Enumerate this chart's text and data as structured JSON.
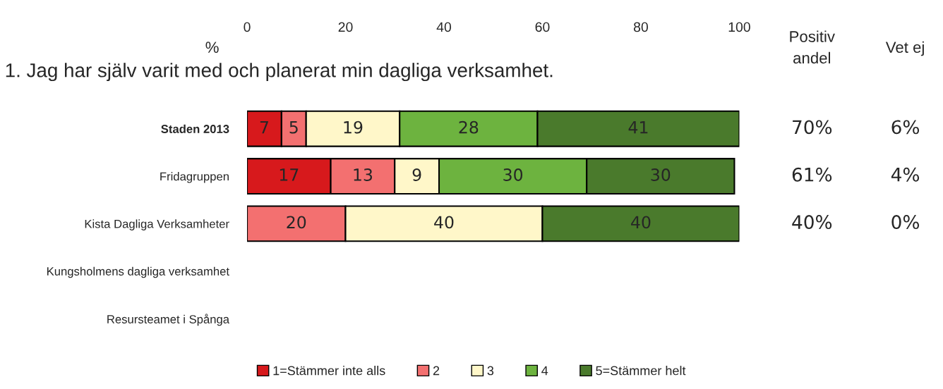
{
  "chart_data": {
    "type": "bar",
    "orientation": "horizontal",
    "stacked": true,
    "title": "1. Jag har själv varit med och planerat min dagliga verksamhet.",
    "xlabel": "%",
    "categories": [
      "Staden 2013",
      "Fridagruppen",
      "Kista Dagliga Verksamheter",
      "Kungsholmens dagliga verksamhet",
      "Resursteamet i Spånga"
    ],
    "series": [
      {
        "name": "1=Stämmer inte alls",
        "color": "#d7191c",
        "values": [
          7,
          17,
          null,
          null,
          null
        ]
      },
      {
        "name": "2",
        "color": "#f37070",
        "values": [
          5,
          13,
          20,
          null,
          null
        ]
      },
      {
        "name": "3",
        "color": "#fff7c9",
        "values": [
          19,
          9,
          40,
          null,
          null
        ]
      },
      {
        "name": "4",
        "color": "#6db33f",
        "values": [
          28,
          30,
          null,
          null,
          null
        ]
      },
      {
        "name": "5=Stämmer helt",
        "color": "#4a7a2c",
        "values": [
          41,
          30,
          40,
          null,
          null
        ]
      }
    ],
    "xlim": [
      0,
      100
    ],
    "xticks": [
      0,
      20,
      40,
      60,
      80,
      100
    ],
    "data_labels": true,
    "legend": "bottom",
    "grid": false,
    "annotations": [
      "Positiv andel",
      "Vet ej",
      "70%",
      "6%",
      "61%",
      "4%",
      "40%",
      "0%"
    ]
  }
}
